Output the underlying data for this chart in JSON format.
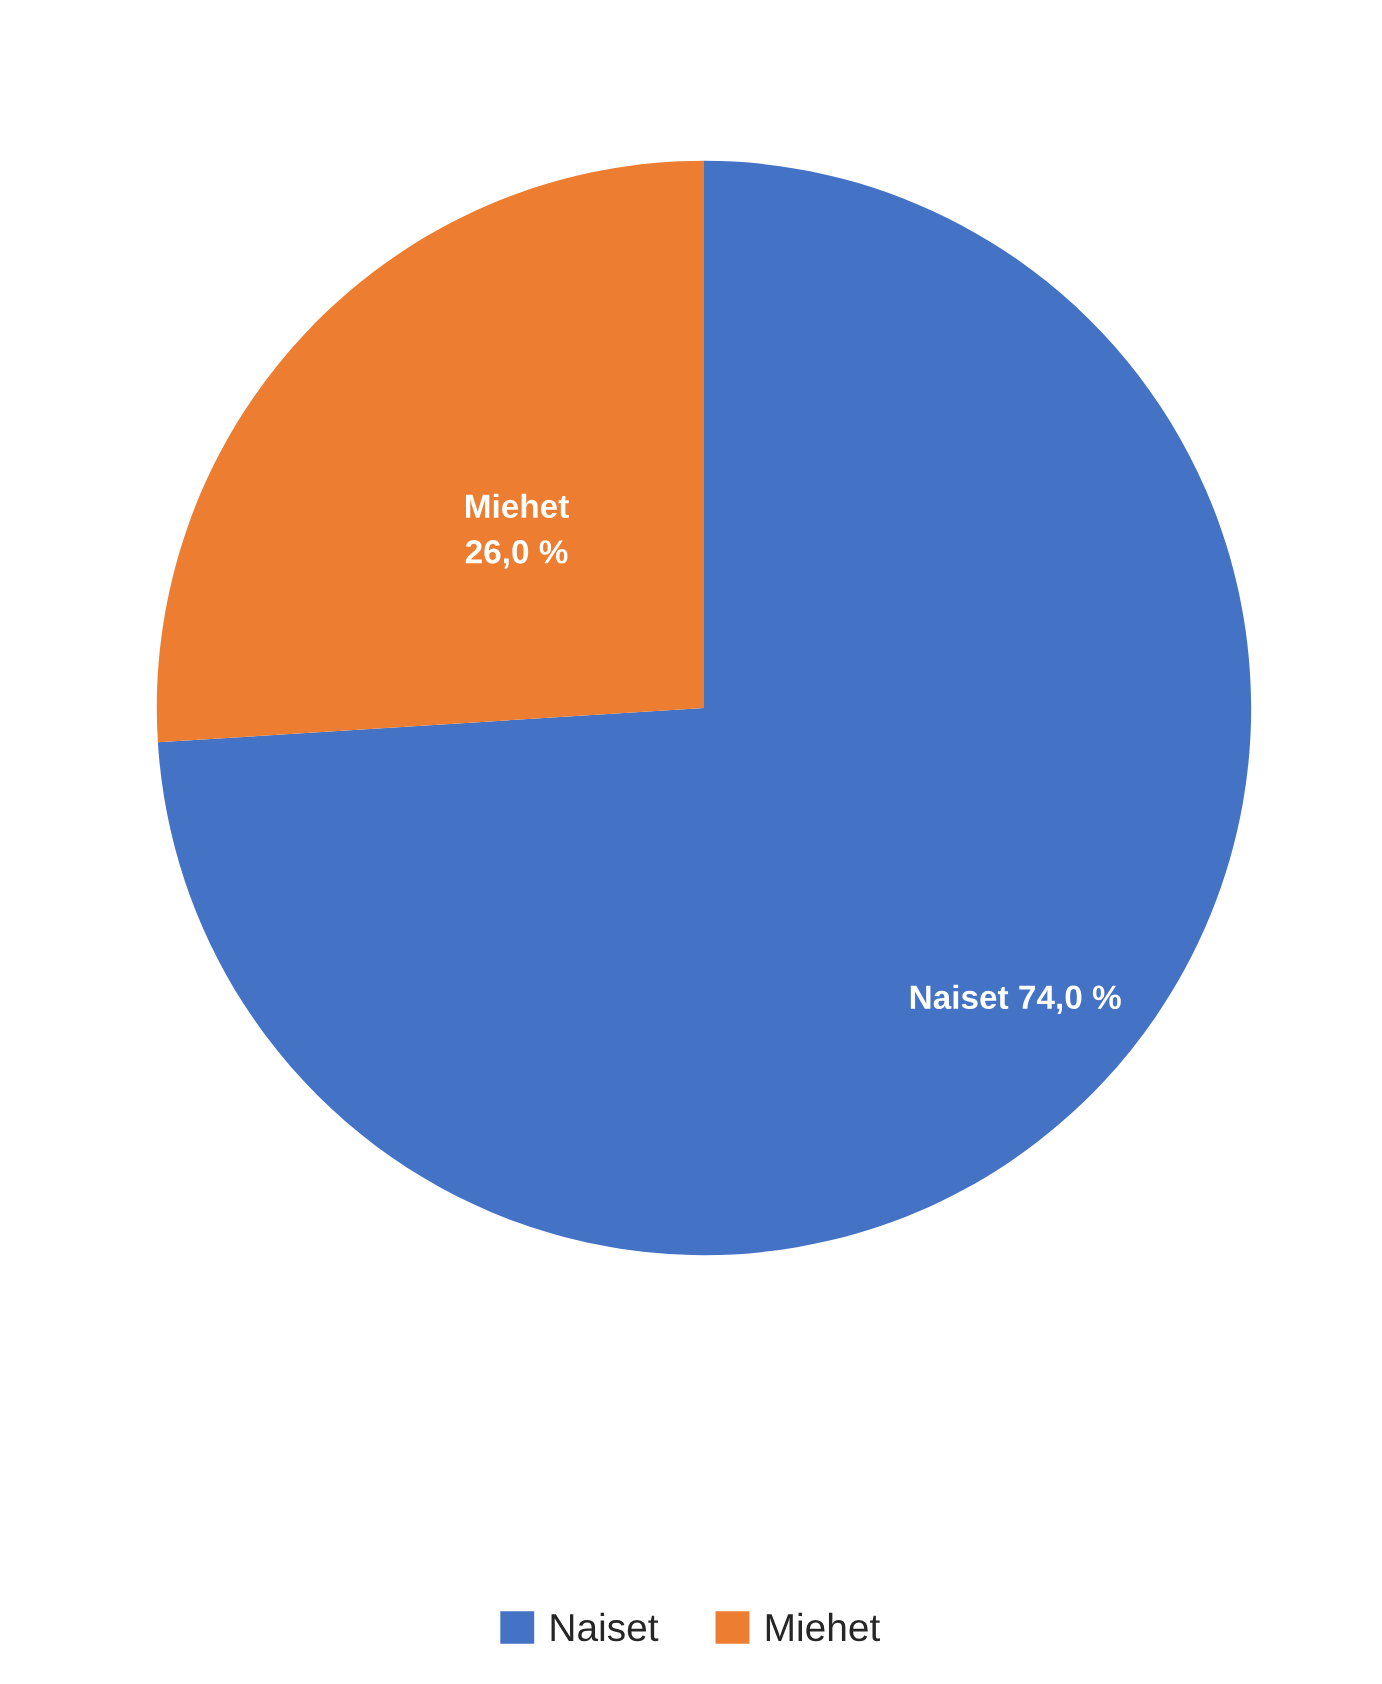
{
  "chart_data": {
    "type": "pie",
    "categories": [
      "Naiset",
      "Miehet"
    ],
    "values": [
      74.0,
      26.0
    ],
    "colors": [
      "#4472c4",
      "#ed7d31"
    ],
    "value_labels": [
      "74,0 %",
      "26,0 %"
    ],
    "legend": "bottom"
  }
}
